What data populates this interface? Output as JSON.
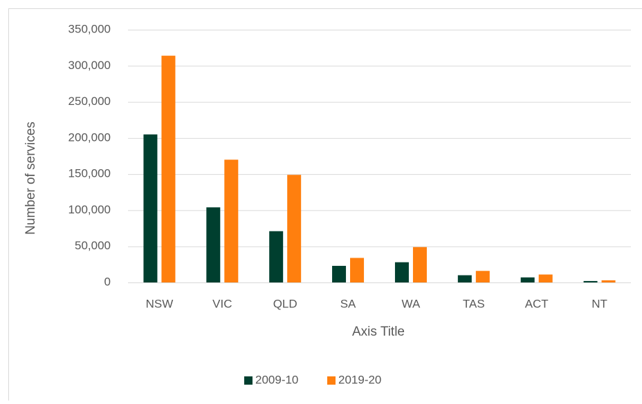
{
  "chart_data": {
    "type": "bar",
    "x_label": "Axis Title",
    "y_label": "Number of services",
    "categories": [
      "NSW",
      "VIC",
      "QLD",
      "SA",
      "WA",
      "TAS",
      "ACT",
      "NT"
    ],
    "series": [
      {
        "name": "2009-10",
        "color": "#003f2f",
        "values": [
          205000,
          104000,
          71000,
          23000,
          28000,
          10000,
          7000,
          2000
        ]
      },
      {
        "name": "2019-20",
        "color": "#ff7f0e",
        "values": [
          314000,
          170000,
          149000,
          34000,
          49000,
          16000,
          11000,
          3000
        ]
      }
    ],
    "ylim": [
      0,
      350000
    ],
    "yticks": [
      0,
      {
        "value": 50000,
        "label": "50,000"
      },
      {
        "value": 100000,
        "label": "100,000"
      },
      {
        "value": 150000,
        "label": "150,000"
      },
      {
        "value": 200000,
        "label": "200,000"
      },
      {
        "value": 250000,
        "label": "250,000"
      },
      {
        "value": 300000,
        "label": "300,000"
      },
      {
        "value": 350000,
        "label": "350,000"
      }
    ],
    "grid": true,
    "legend": "bottom"
  }
}
